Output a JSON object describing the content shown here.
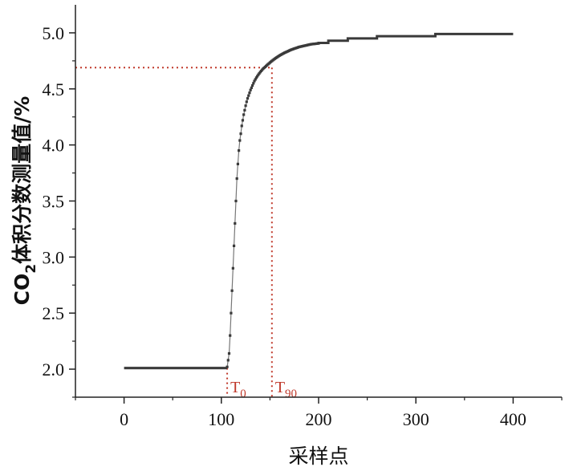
{
  "chart_data": {
    "type": "line",
    "xlabel": "采样点",
    "ylabel_main": "CO",
    "ylabel_sub": "2",
    "ylabel_rest": "体积分数测量值/%",
    "xlim": [
      -50,
      450
    ],
    "ylim": [
      1.75,
      5.25
    ],
    "x_ticks": [
      0,
      100,
      200,
      300,
      400
    ],
    "x_tick_labels": [
      "0",
      "100",
      "200",
      "300",
      "400"
    ],
    "y_ticks": [
      2.0,
      2.5,
      3.0,
      3.5,
      4.0,
      4.5,
      5.0
    ],
    "y_tick_labels": [
      "2.0",
      "2.5",
      "3.0",
      "3.5",
      "4.0",
      "4.5",
      "5.0"
    ],
    "grid": false,
    "series": [
      {
        "color": "#3a3a3a",
        "flat_start": {
          "x": [
            0,
            106
          ],
          "y": 2.01
        },
        "x": [
          106,
          107,
          108,
          109,
          110,
          111,
          112,
          113,
          114,
          115,
          116,
          117,
          118,
          119,
          120,
          121,
          122,
          123,
          124,
          125,
          126,
          127,
          128,
          129,
          130,
          131,
          132,
          133,
          134,
          135,
          136,
          137,
          138,
          139,
          140,
          141,
          142,
          143,
          144,
          145,
          146,
          147,
          148,
          149,
          150,
          151,
          152,
          153,
          154,
          155,
          156,
          157,
          158,
          159,
          160,
          161,
          162,
          163,
          164,
          165,
          166,
          167,
          168,
          169,
          170,
          171,
          172,
          173,
          174,
          175,
          176,
          177,
          178,
          179,
          180,
          181,
          182,
          183,
          184,
          185,
          186,
          187,
          188,
          189,
          190,
          191,
          192,
          193,
          194,
          195,
          196,
          197,
          198,
          199,
          200
        ],
        "y": [
          2.02,
          2.08,
          2.14,
          2.3,
          2.5,
          2.7,
          2.9,
          3.1,
          3.3,
          3.5,
          3.7,
          3.83,
          3.95,
          4.04,
          4.1,
          4.17,
          4.22,
          4.27,
          4.31,
          4.35,
          4.385,
          4.415,
          4.44,
          4.465,
          4.49,
          4.51,
          4.53,
          4.55,
          4.57,
          4.585,
          4.6,
          4.613,
          4.626,
          4.638,
          4.65,
          4.66,
          4.67,
          4.68,
          4.688,
          4.696,
          4.704,
          4.712,
          4.72,
          4.727,
          4.735,
          4.742,
          4.749,
          4.756,
          4.763,
          4.769,
          4.775,
          4.781,
          4.787,
          4.793,
          4.798,
          4.803,
          4.808,
          4.813,
          4.818,
          4.822,
          4.826,
          4.83,
          4.834,
          4.838,
          4.842,
          4.846,
          4.85,
          4.853,
          4.856,
          4.859,
          4.862,
          4.865,
          4.868,
          4.871,
          4.874,
          4.876,
          4.878,
          4.88,
          4.882,
          4.884,
          4.886,
          4.888,
          4.89,
          4.892,
          4.894,
          4.896,
          4.898,
          4.899,
          4.9,
          4.901,
          4.902,
          4.903,
          4.904,
          4.905,
          4.906
        ],
        "steps": [
          [
            200,
            4.91
          ],
          [
            210,
            4.91
          ],
          [
            210,
            4.93
          ],
          [
            230,
            4.93
          ],
          [
            230,
            4.95
          ],
          [
            260,
            4.95
          ],
          [
            260,
            4.97
          ],
          [
            320,
            4.97
          ],
          [
            320,
            4.99
          ],
          [
            400,
            4.99
          ]
        ]
      }
    ],
    "reference_lines": {
      "color": "#c0392b",
      "horizontal_y": 4.69,
      "horizontal_x_end": 152,
      "t0_x": 106,
      "t90_x": 152
    },
    "annotations": [
      {
        "text": "T",
        "sub": "0",
        "x": 106
      },
      {
        "text": "T",
        "sub": "90",
        "x": 152
      }
    ]
  }
}
